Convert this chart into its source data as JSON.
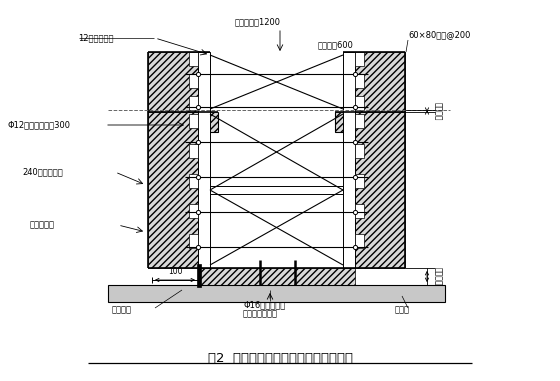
{
  "title": "图2  电梯井坑、集水井坑处模板支设图",
  "bg_color": "#ffffff",
  "fig_width": 5.6,
  "fig_height": 3.81,
  "dpi": 100,
  "labels": {
    "top_left1": "12厚竹胶合板",
    "top_center": "立杆纵横距1200",
    "top_right1": "横杆步距600",
    "top_right2": "60×80木枋@200",
    "left1": "Φ12螺杆纵横间距300",
    "left2": "240厚砖砌地模",
    "left3": "预埋钢筋头",
    "bottom_left1": "止水钢板",
    "bottom_center1": "Φ16钢筋支撑焊",
    "bottom_center2": "接于底板钢筋上",
    "bottom_right": "砼垫层",
    "right1": "底板厚度",
    "right2": "底板厚度",
    "dim_100": "100"
  }
}
